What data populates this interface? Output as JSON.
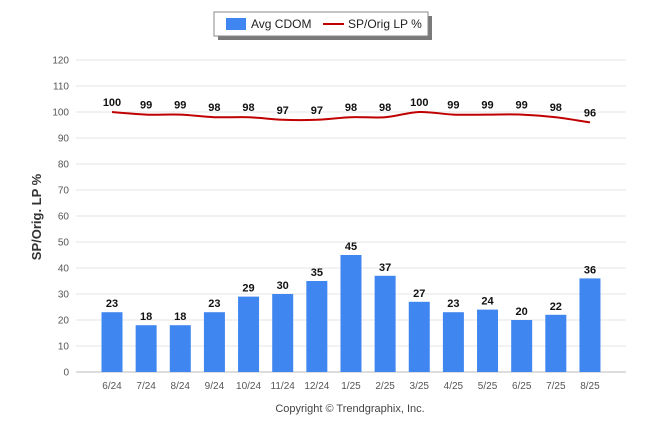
{
  "chart_data": {
    "type": "bar",
    "categories": [
      "6/24",
      "7/24",
      "8/24",
      "9/24",
      "10/24",
      "11/24",
      "12/24",
      "1/25",
      "2/25",
      "3/25",
      "4/25",
      "5/25",
      "6/25",
      "7/25",
      "8/25"
    ],
    "series": [
      {
        "name": "Avg CDOM",
        "type": "bar",
        "color": "#3f86f0",
        "values": [
          23,
          18,
          18,
          23,
          29,
          30,
          35,
          45,
          37,
          27,
          23,
          24,
          20,
          22,
          36
        ]
      },
      {
        "name": "SP/Orig LP %",
        "type": "line",
        "color": "#c00000",
        "values": [
          100,
          99,
          99,
          98,
          98,
          97,
          97,
          98,
          98,
          100,
          99,
          99,
          99,
          98,
          96
        ]
      }
    ],
    "title": "",
    "xlabel": "",
    "ylabel": "SP/Orig. LP %",
    "ylim": [
      0,
      120
    ],
    "yticks": [
      0,
      10,
      20,
      30,
      40,
      50,
      60,
      70,
      80,
      90,
      100,
      110,
      120
    ],
    "grid": true,
    "legend_position": "top-center"
  },
  "footer": {
    "copyright": "Copyright © Trendgraphix, Inc."
  }
}
